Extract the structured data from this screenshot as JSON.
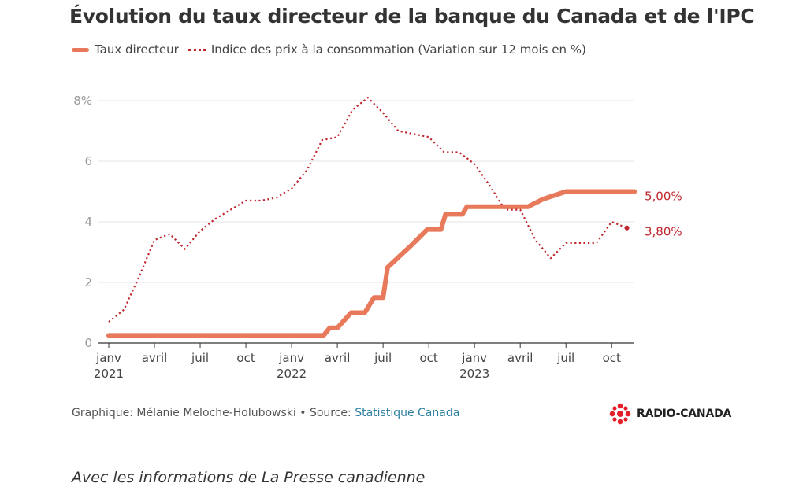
{
  "header": {
    "title": "Évolution du taux directeur de la banque du Canada et de l'IPC"
  },
  "colors": {
    "policy_rate": "#e8795a",
    "cpi": "#c0272d",
    "grid": "#e5e5e5",
    "axis": "#333333",
    "tick": "#999999"
  },
  "chart_data": {
    "type": "line",
    "title": "Évolution du taux directeur de la banque du Canada et de l'IPC",
    "xlabel": "",
    "ylabel": "",
    "ylim": [
      0,
      8
    ],
    "yticks": [
      {
        "value": 0,
        "label": "0"
      },
      {
        "value": 2,
        "label": "2"
      },
      {
        "value": 4,
        "label": "4"
      },
      {
        "value": 6,
        "label": "6"
      },
      {
        "value": 8,
        "label": "8%"
      }
    ],
    "xticks": [
      {
        "index": 0,
        "label": "janv",
        "year": "2021"
      },
      {
        "index": 3,
        "label": "avril"
      },
      {
        "index": 6,
        "label": "juil"
      },
      {
        "index": 9,
        "label": "oct"
      },
      {
        "index": 12,
        "label": "janv",
        "year": "2022"
      },
      {
        "index": 15,
        "label": "avril"
      },
      {
        "index": 18,
        "label": "juil"
      },
      {
        "index": 21,
        "label": "oct"
      },
      {
        "index": 24,
        "label": "janv",
        "year": "2023"
      },
      {
        "index": 27,
        "label": "avril"
      },
      {
        "index": 30,
        "label": "juil"
      },
      {
        "index": 33,
        "label": "oct"
      }
    ],
    "series": [
      {
        "name": "Taux directeur",
        "style": "solid",
        "x": [
          0,
          14.1,
          14.5,
          15,
          15.9,
          16.8,
          17.4,
          18,
          18.3,
          19.9,
          20.9,
          21.8,
          22.1,
          23.2,
          23.5,
          24.2,
          25,
          27.5,
          28.5,
          30,
          34.5
        ],
        "values": [
          0.25,
          0.25,
          0.5,
          0.5,
          1.0,
          1.0,
          1.5,
          1.5,
          2.5,
          3.25,
          3.75,
          3.75,
          4.25,
          4.25,
          4.5,
          4.5,
          4.5,
          4.5,
          4.75,
          5.0,
          5.0
        ],
        "end_label": "5,00%"
      },
      {
        "name": "Indice des prix à la consommation (Variation sur 12 mois en %)",
        "style": "dotted",
        "x": [
          0,
          1,
          2,
          3,
          4,
          5,
          6,
          7,
          8,
          9,
          10,
          11,
          12,
          13,
          14,
          15,
          16,
          17,
          18,
          19,
          20,
          21,
          22,
          23,
          24,
          25,
          26,
          27,
          28,
          29,
          30,
          31,
          32,
          33,
          34
        ],
        "values": [
          0.7,
          1.1,
          2.2,
          3.4,
          3.6,
          3.1,
          3.7,
          4.1,
          4.4,
          4.7,
          4.7,
          4.8,
          5.1,
          5.7,
          6.7,
          6.8,
          7.7,
          8.1,
          7.6,
          7.0,
          6.9,
          6.8,
          6.3,
          6.3,
          5.9,
          5.2,
          4.4,
          4.4,
          3.4,
          2.8,
          3.3,
          3.3,
          3.3,
          4.0,
          3.8
        ],
        "end_label": "3,80%"
      }
    ]
  },
  "legend": {
    "policy_rate": "Taux directeur",
    "cpi": "Indice des prix à la consommation (Variation sur 12 mois en %)"
  },
  "footer": {
    "credit": "Graphique: Mélanie Meloche-Holubowski • Source: ",
    "source_link": "Statistique Canada"
  },
  "logo": {
    "text": "RADIO-CANADA"
  },
  "note": "Avec les informations de La Presse canadienne"
}
